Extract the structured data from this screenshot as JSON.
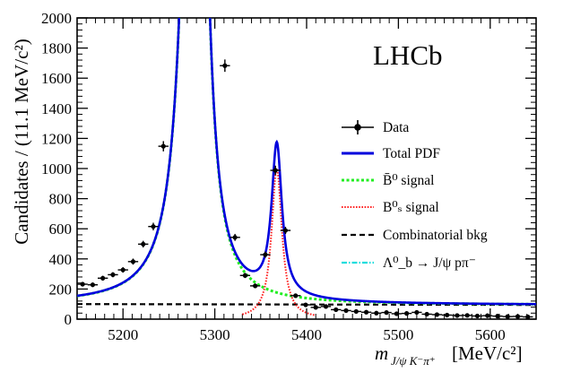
{
  "chart_data": {
    "type": "line",
    "title": "",
    "brand_label": "LHCb",
    "xlabel_parts": {
      "m": "m",
      "sub": "J/ψ K⁻π⁺",
      "unit": "[MeV/c²]"
    },
    "ylabel": "Candidates / (11.1 MeV/c²)",
    "xlim": [
      5150,
      5650
    ],
    "ylim": [
      0,
      2000
    ],
    "x_ticks": [
      5200,
      5300,
      5400,
      5500,
      5600
    ],
    "y_ticks": [
      0,
      200,
      400,
      600,
      800,
      1000,
      1200,
      1400,
      1600,
      1800,
      2000
    ],
    "bin_half_width": 5.55,
    "legend": {
      "position": "right",
      "entries": [
        {
          "key": "data",
          "label": "Data"
        },
        {
          "key": "total",
          "label": "Total PDF"
        },
        {
          "key": "bd",
          "label": "B̄⁰ signal"
        },
        {
          "key": "bs",
          "label": "B⁰ₛ signal"
        },
        {
          "key": "comb",
          "label": "Combinatorial bkg"
        },
        {
          "key": "lb",
          "label": "Λ⁰_b → J/ψ pπ⁻"
        }
      ]
    },
    "colors": {
      "data": "#000000",
      "total": "#0000dd",
      "bd": "#22ee22",
      "bs": "#ff2222",
      "comb": "#000000",
      "lb": "#22dddd"
    },
    "model": {
      "comb_start": 100,
      "comb_slope_per_mev": 0.011,
      "bd": {
        "amp": 6500,
        "mean": 5279.6,
        "gamma": 10.6,
        "tail_steps": 4
      },
      "bs": {
        "amp": 1000,
        "mean": 5367.5,
        "gamma": 6.8
      }
    },
    "series": [
      {
        "name": "Data",
        "points": [
          {
            "x": 5156,
            "y": 232,
            "err": 15
          },
          {
            "x": 5167,
            "y": 228,
            "err": 15
          },
          {
            "x": 5178,
            "y": 272,
            "err": 16
          },
          {
            "x": 5189,
            "y": 295,
            "err": 17
          },
          {
            "x": 5200,
            "y": 327,
            "err": 18
          },
          {
            "x": 5211,
            "y": 382,
            "err": 20
          },
          {
            "x": 5222,
            "y": 498,
            "err": 22
          },
          {
            "x": 5233,
            "y": 615,
            "err": 25
          },
          {
            "x": 5244,
            "y": 1148,
            "err": 34
          },
          {
            "x": 5311,
            "y": 1683,
            "err": 41
          },
          {
            "x": 5322,
            "y": 543,
            "err": 23
          },
          {
            "x": 5333,
            "y": 290,
            "err": 17
          },
          {
            "x": 5344,
            "y": 221,
            "err": 15
          },
          {
            "x": 5355,
            "y": 428,
            "err": 21
          },
          {
            "x": 5366,
            "y": 988,
            "err": 31
          },
          {
            "x": 5377,
            "y": 589,
            "err": 24
          },
          {
            "x": 5388,
            "y": 156,
            "err": 12
          },
          {
            "x": 5399,
            "y": 95,
            "err": 10
          },
          {
            "x": 5410,
            "y": 78,
            "err": 9
          },
          {
            "x": 5421,
            "y": 84,
            "err": 9
          },
          {
            "x": 5432,
            "y": 63,
            "err": 8
          },
          {
            "x": 5443,
            "y": 57,
            "err": 8
          },
          {
            "x": 5454,
            "y": 51,
            "err": 7
          },
          {
            "x": 5465,
            "y": 46,
            "err": 7
          },
          {
            "x": 5476,
            "y": 40,
            "err": 6
          },
          {
            "x": 5487,
            "y": 44,
            "err": 7
          },
          {
            "x": 5498,
            "y": 36,
            "err": 6
          },
          {
            "x": 5509,
            "y": 38,
            "err": 6
          },
          {
            "x": 5520,
            "y": 45,
            "err": 7
          },
          {
            "x": 5531,
            "y": 33,
            "err": 6
          },
          {
            "x": 5542,
            "y": 30,
            "err": 5
          },
          {
            "x": 5553,
            "y": 27,
            "err": 5
          },
          {
            "x": 5564,
            "y": 24,
            "err": 5
          },
          {
            "x": 5575,
            "y": 25,
            "err": 5
          },
          {
            "x": 5586,
            "y": 21,
            "err": 5
          },
          {
            "x": 5597,
            "y": 23,
            "err": 5
          },
          {
            "x": 5608,
            "y": 20,
            "err": 4
          },
          {
            "x": 5619,
            "y": 17,
            "err": 4
          },
          {
            "x": 5630,
            "y": 18,
            "err": 4
          },
          {
            "x": 5641,
            "y": 15,
            "err": 4
          }
        ]
      },
      {
        "name": "Total PDF",
        "curve": "comb + bd + bs"
      },
      {
        "name": "B̄⁰ signal",
        "curve": "bd + comb"
      },
      {
        "name": "B⁰ₛ signal",
        "curve": "bs"
      },
      {
        "name": "Combinatorial bkg",
        "curve": "comb"
      },
      {
        "name": "Λ⁰_b → J/ψ pπ⁻",
        "curve": "≈0"
      }
    ]
  }
}
